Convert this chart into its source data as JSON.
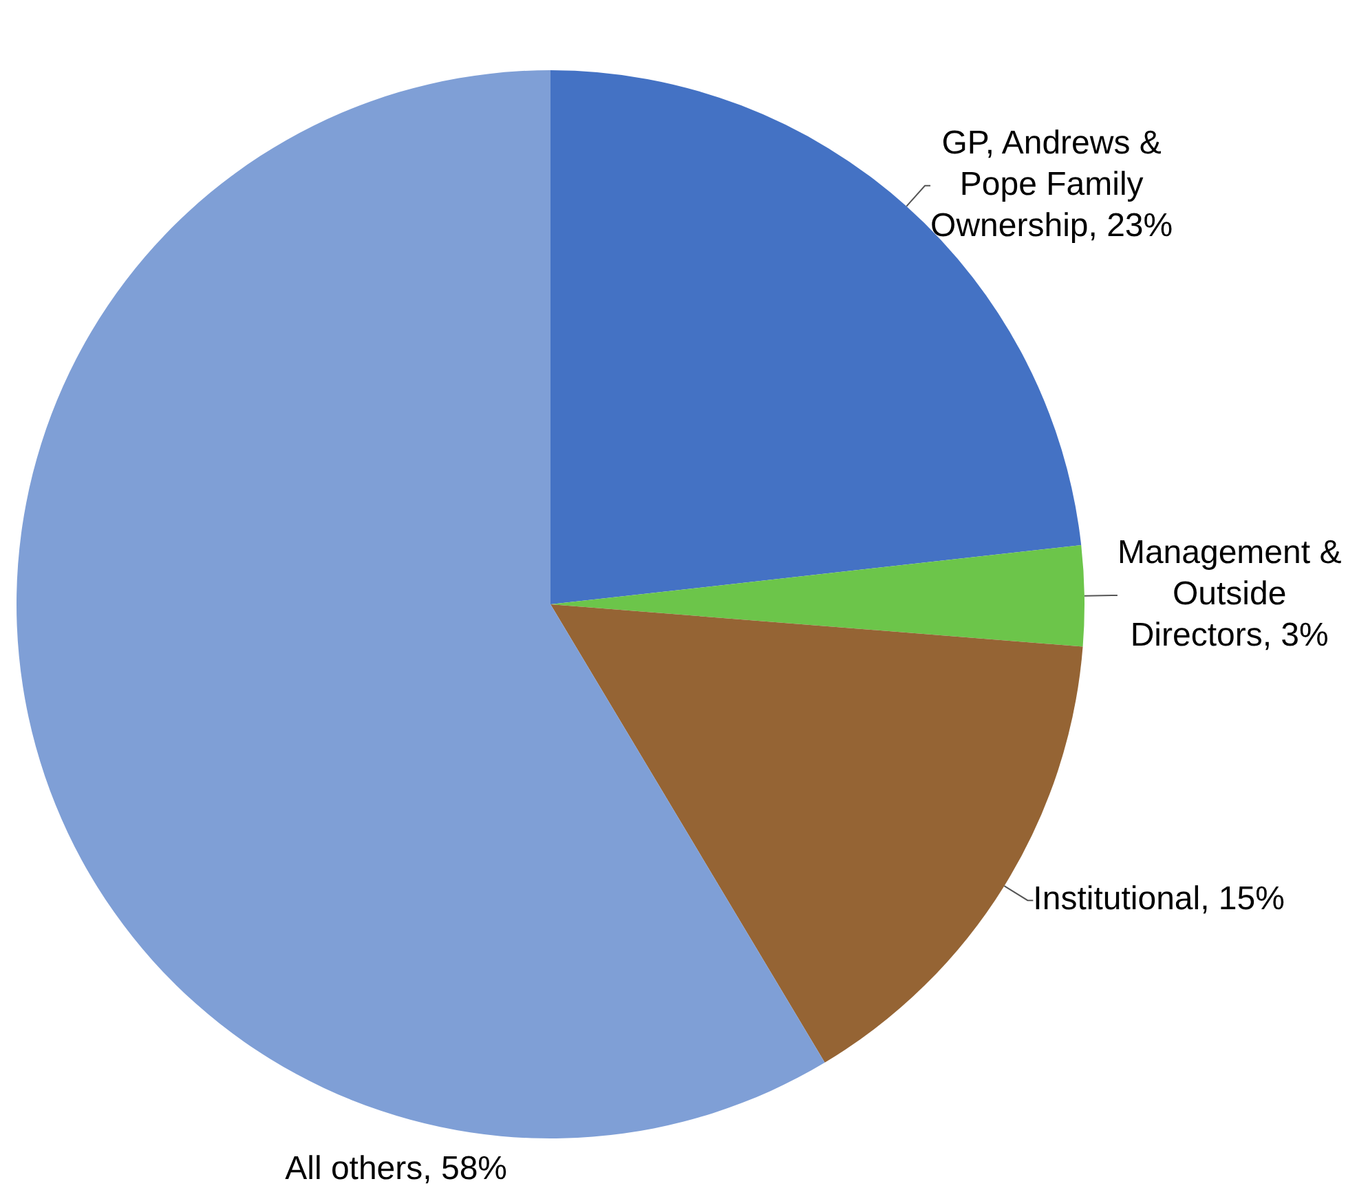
{
  "chart_data": {
    "type": "pie",
    "categories": [
      "GP, Andrews & Pope Family Ownership",
      "Management & Outside Directors",
      "Institutional",
      "All others"
    ],
    "values": [
      23,
      3,
      15,
      58
    ],
    "value_labels": [
      "23%",
      "3%",
      "15%",
      "58%"
    ],
    "colors": [
      "#4472c4",
      "#6cc54a",
      "#956434",
      "#7f9fd6"
    ],
    "legend": false
  }
}
